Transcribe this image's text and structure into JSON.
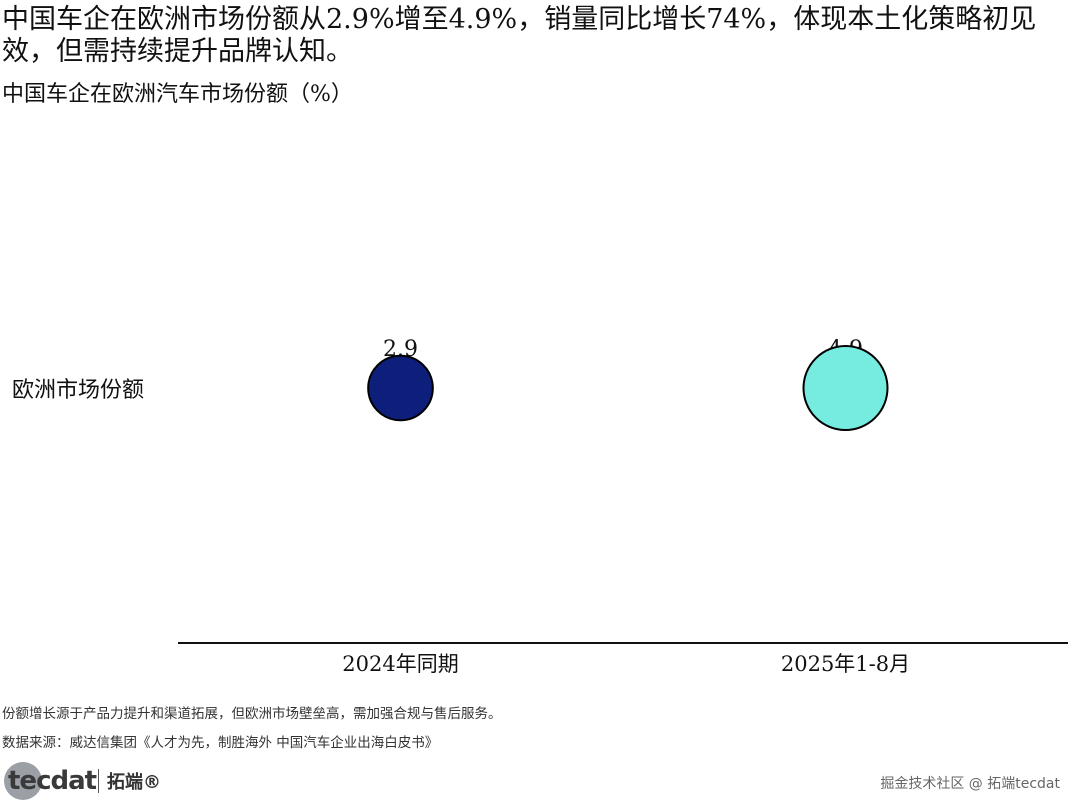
{
  "headline": "中国车企在欧洲市场份额从2.9%增至4.9%，销量同比增长74%，体现本土化策略初见效，但需持续提升品牌认知。",
  "chart_data": {
    "type": "scatter",
    "subtitle": "中国车企在欧洲汽车市场份额（%）",
    "row_label": "欧洲市场份额",
    "categories": [
      "2024年同期",
      "2025年1-8月"
    ],
    "values": [
      2.9,
      4.9
    ],
    "value_labels": [
      "2.9",
      "4.9"
    ],
    "colors": [
      "#0d1f7a",
      "#76ece0"
    ],
    "bubble_size_by_value": true,
    "grid": false
  },
  "notes": {
    "line1": "份额增长源于产品力提升和渠道拓展，但欧洲市场壁垒高，需加强合规与售后服务。",
    "line2": "数据来源：威达信集团《人才为先，制胜海外 中国汽车企业出海白皮书》"
  },
  "brand": {
    "logo_text": "tecdat",
    "name_cn": "拓端®"
  },
  "watermark": "掘金技术社区 @ 拓端tecdat"
}
